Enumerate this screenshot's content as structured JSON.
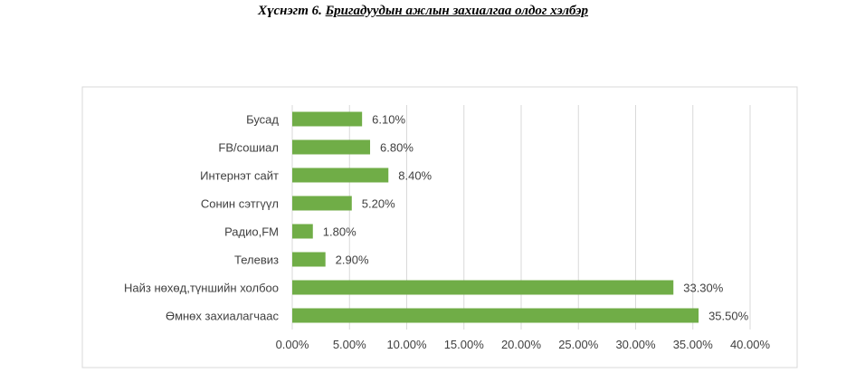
{
  "title": {
    "prefix": "Хүснэгт 6. ",
    "main": "Бригадуудын ажлын захиалгаа олдог хэлбэр"
  },
  "chart_data": {
    "type": "bar",
    "orientation": "horizontal",
    "categories": [
      "Бусад",
      "FB/сошиал",
      "Интернэт сайт",
      "Сонин сэтгүүл",
      "Радио,FM",
      "Телевиз",
      "Найз нөхөд,түншийн холбоо",
      "Өмнөх захиалагчаас"
    ],
    "values": [
      6.1,
      6.8,
      8.4,
      5.2,
      1.8,
      2.9,
      33.3,
      35.5
    ],
    "value_labels": [
      "6.10%",
      "6.80%",
      "8.40%",
      "5.20%",
      "1.80%",
      "2.90%",
      "33.30%",
      "35.50%"
    ],
    "xlim": [
      0,
      40
    ],
    "xticks": [
      0,
      5,
      10,
      15,
      20,
      25,
      30,
      35,
      40
    ],
    "xtick_labels": [
      "0.00%",
      "5.00%",
      "10.00%",
      "15.00%",
      "20.00%",
      "25.00%",
      "30.00%",
      "35.00%",
      "40.00%"
    ],
    "grid": true,
    "legend": "none",
    "bar_color": "#70ad47"
  }
}
